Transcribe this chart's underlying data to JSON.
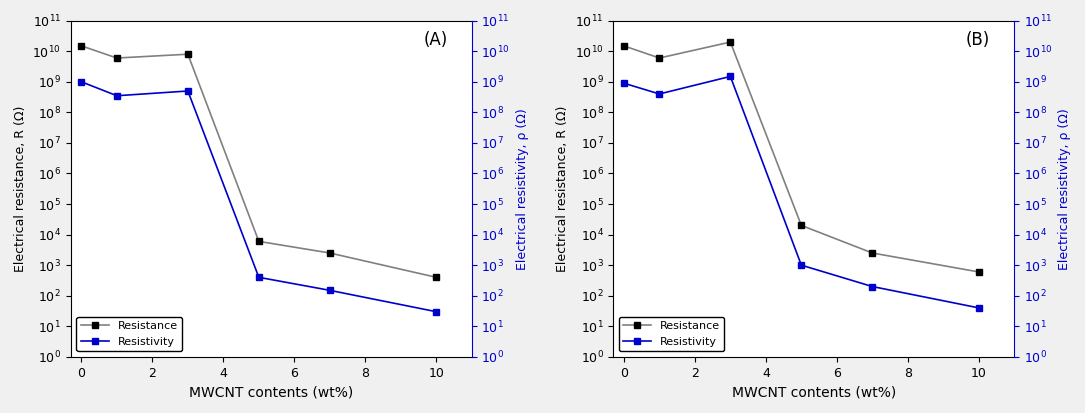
{
  "panel_A": {
    "label": "(A)",
    "x": [
      0,
      1,
      3,
      5,
      7,
      10
    ],
    "resistance": [
      15000000000.0,
      6000000000.0,
      8000000000.0,
      6000.0,
      2500.0,
      400.0
    ],
    "resistivity": [
      1000000000.0,
      350000000.0,
      500000000.0,
      400.0,
      150.0,
      30
    ]
  },
  "panel_B": {
    "label": "(B)",
    "x": [
      0,
      1,
      3,
      5,
      7,
      10
    ],
    "resistance": [
      15000000000.0,
      6000000000.0,
      20000000000.0,
      20000.0,
      2500.0,
      600.0
    ],
    "resistivity": [
      900000000.0,
      400000000.0,
      1500000000.0,
      1000.0,
      200.0,
      40
    ]
  },
  "resistance_color": "#808080",
  "resistance_marker_color": "#000000",
  "resistivity_color": "#0000cc",
  "resistance_label": "Resistance",
  "resistivity_label": "Resistivity",
  "xlabel": "MWCNT contents (wt%)",
  "ylabel_left": "Electrical resistance, R (Ω)",
  "ylabel_right": "Electrical resistivity, ρ (Ω)",
  "ylim": [
    1.0,
    100000000000.0
  ],
  "xlim": [
    -0.3,
    11
  ],
  "xticks": [
    0,
    2,
    4,
    6,
    8,
    10
  ],
  "bg_color": "#ffffff",
  "fig_bg_color": "#f0f0f0",
  "marker": "s",
  "markersize": 5,
  "linewidth": 1.2,
  "font_size": 9,
  "label_fontsize": 10,
  "panel_fontsize": 12
}
